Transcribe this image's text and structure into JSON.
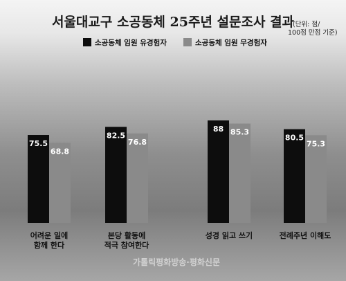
{
  "chart_data": {
    "type": "bar",
    "title": "서울대교구 소공동체 25주년 설문조사 결과",
    "unit_note": [
      "(단위: 점/",
      "100점 만점 기준)"
    ],
    "categories": [
      [
        "어려운 일에",
        "함께 한다"
      ],
      [
        "본당 활동에",
        "적극 참여한다"
      ],
      [
        "성경 읽고 쓰기"
      ],
      [
        "전례주년 이해도"
      ]
    ],
    "series": [
      {
        "name": "소공동체 임원 유경험자",
        "color": "#0d0d0d",
        "values": [
          75.5,
          82.5,
          88,
          80.5
        ],
        "labels": [
          "75.5",
          "82.5",
          "88",
          "80.5"
        ]
      },
      {
        "name": "소공동체 임원 무경험자",
        "color": "#8a8a8a",
        "values": [
          68.8,
          76.8,
          85.3,
          75.3
        ],
        "labels": [
          "68.8",
          "76.8",
          "85.3",
          "75.3"
        ]
      }
    ]
  },
  "credit": "가톨릭평화방송·평화신문"
}
